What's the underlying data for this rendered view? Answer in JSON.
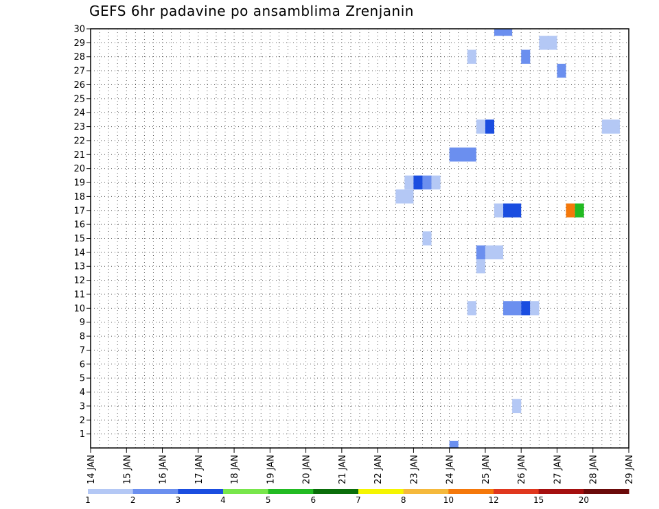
{
  "chart_data": {
    "type": "heatmap",
    "title": "GEFS 6hr padavine po ansamblima Zrenjanin",
    "y_categories": [
      "1",
      "2",
      "3",
      "4",
      "5",
      "6",
      "7",
      "8",
      "9",
      "10",
      "11",
      "12",
      "13",
      "14",
      "15",
      "16",
      "17",
      "18",
      "19",
      "20",
      "21",
      "22",
      "23",
      "24",
      "25",
      "26",
      "27",
      "28",
      "29",
      "30"
    ],
    "x_tick_labels": [
      "14 JAN",
      "15 JAN",
      "16 JAN",
      "17 JAN",
      "18 JAN",
      "19 JAN",
      "20 JAN",
      "21 JAN",
      "22 JAN",
      "23 JAN",
      "24 JAN",
      "25 JAN",
      "26 JAN",
      "27 JAN",
      "28 JAN",
      "29 JAN"
    ],
    "xlim": [
      "14 JAN 00Z",
      "29 JAN 00Z"
    ],
    "grid": true,
    "colorbar": {
      "ticks": [
        "1",
        "2",
        "3",
        "4",
        "5",
        "6",
        "7",
        "8",
        "10",
        "12",
        "15",
        "20"
      ],
      "colors": [
        "#b4c8f5",
        "#6b8fef",
        "#1a4de0",
        "#78e64b",
        "#22bb22",
        "#0a6e0a",
        "#f5f500",
        "#f5b93c",
        "#f5780a",
        "#e0371e",
        "#a50f0f",
        "#6b0a0a"
      ]
    },
    "cells": [
      {
        "member": 30,
        "x_start": 25.25,
        "x_end": 25.75,
        "color": "#6b8fef"
      },
      {
        "member": 29,
        "x_start": 26.5,
        "x_end": 27.0,
        "color": "#b4c8f5"
      },
      {
        "member": 28,
        "x_start": 24.5,
        "x_end": 24.75,
        "color": "#b4c8f5"
      },
      {
        "member": 28,
        "x_start": 26.0,
        "x_end": 26.25,
        "color": "#6b8fef"
      },
      {
        "member": 27,
        "x_start": 27.0,
        "x_end": 27.25,
        "color": "#6b8fef"
      },
      {
        "member": 23,
        "x_start": 24.75,
        "x_end": 25.0,
        "color": "#b4c8f5"
      },
      {
        "member": 23,
        "x_start": 25.0,
        "x_end": 25.25,
        "color": "#1a4de0"
      },
      {
        "member": 23,
        "x_start": 28.25,
        "x_end": 28.75,
        "color": "#b4c8f5"
      },
      {
        "member": 21,
        "x_start": 24.0,
        "x_end": 24.75,
        "color": "#6b8fef"
      },
      {
        "member": 19,
        "x_start": 22.75,
        "x_end": 23.0,
        "color": "#b4c8f5"
      },
      {
        "member": 19,
        "x_start": 23.0,
        "x_end": 23.25,
        "color": "#1a4de0"
      },
      {
        "member": 19,
        "x_start": 23.25,
        "x_end": 23.5,
        "color": "#6b8fef"
      },
      {
        "member": 19,
        "x_start": 23.5,
        "x_end": 23.75,
        "color": "#b4c8f5"
      },
      {
        "member": 18,
        "x_start": 22.5,
        "x_end": 23.0,
        "color": "#b4c8f5"
      },
      {
        "member": 17,
        "x_start": 25.25,
        "x_end": 25.5,
        "color": "#b4c8f5"
      },
      {
        "member": 17,
        "x_start": 25.5,
        "x_end": 26.0,
        "color": "#1a4de0"
      },
      {
        "member": 17,
        "x_start": 27.25,
        "x_end": 27.5,
        "color": "#f5780a"
      },
      {
        "member": 17,
        "x_start": 27.5,
        "x_end": 27.75,
        "color": "#22bb22"
      },
      {
        "member": 15,
        "x_start": 23.25,
        "x_end": 23.5,
        "color": "#b4c8f5"
      },
      {
        "member": 14,
        "x_start": 24.75,
        "x_end": 25.0,
        "color": "#6b8fef"
      },
      {
        "member": 14,
        "x_start": 25.0,
        "x_end": 25.5,
        "color": "#b4c8f5"
      },
      {
        "member": 13,
        "x_start": 24.75,
        "x_end": 25.0,
        "color": "#b4c8f5"
      },
      {
        "member": 10,
        "x_start": 24.5,
        "x_end": 24.75,
        "color": "#b4c8f5"
      },
      {
        "member": 10,
        "x_start": 25.5,
        "x_end": 26.0,
        "color": "#6b8fef"
      },
      {
        "member": 10,
        "x_start": 26.0,
        "x_end": 26.25,
        "color": "#1a4de0"
      },
      {
        "member": 10,
        "x_start": 26.25,
        "x_end": 26.5,
        "color": "#b4c8f5"
      },
      {
        "member": 3,
        "x_start": 25.75,
        "x_end": 26.0,
        "color": "#b4c8f5"
      },
      {
        "member": 0,
        "x_start": 24.0,
        "x_end": 24.25,
        "color": "#6b8fef"
      }
    ]
  }
}
